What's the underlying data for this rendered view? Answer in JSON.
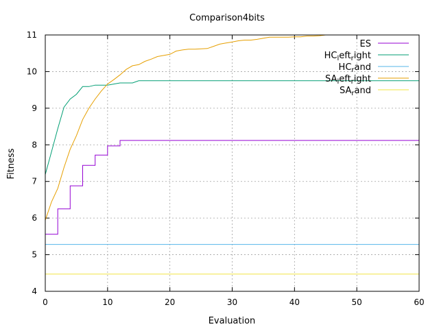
{
  "chart_data": {
    "type": "line",
    "title": "Comparison4bits",
    "xlabel": "Evaluation",
    "ylabel": "Fitness",
    "xlim": [
      0,
      60
    ],
    "ylim": [
      4,
      11
    ],
    "x_ticks": [
      0,
      10,
      20,
      30,
      40,
      50,
      60
    ],
    "y_ticks": [
      4,
      5,
      6,
      7,
      8,
      9,
      10,
      11
    ],
    "grid": true,
    "legend_position": "top-right",
    "series": [
      {
        "name": "ES",
        "legend_main": "ES",
        "legend_parts": [],
        "color": "#9400d3",
        "step": true,
        "points": [
          [
            0,
            5.56
          ],
          [
            1,
            5.56
          ],
          [
            2,
            6.25
          ],
          [
            3,
            6.25
          ],
          [
            4,
            6.88
          ],
          [
            5,
            6.88
          ],
          [
            6,
            7.44
          ],
          [
            7,
            7.44
          ],
          [
            8,
            7.72
          ],
          [
            9,
            7.72
          ],
          [
            10,
            7.97
          ],
          [
            11,
            7.97
          ],
          [
            12,
            8.12
          ],
          [
            60,
            8.12
          ]
        ]
      },
      {
        "name": "HC_left_right",
        "legend_main": "HC",
        "legend_parts": [
          [
            "_",
            "l"
          ],
          [
            "",
            "eft"
          ],
          [
            "_",
            "r"
          ],
          [
            "",
            "ight"
          ]
        ],
        "color": "#009e73",
        "step": false,
        "points": [
          [
            0,
            7.19
          ],
          [
            1,
            7.81
          ],
          [
            2,
            8.44
          ],
          [
            3,
            9.03
          ],
          [
            4,
            9.25
          ],
          [
            5,
            9.38
          ],
          [
            6,
            9.59
          ],
          [
            7,
            9.59
          ],
          [
            8,
            9.63
          ],
          [
            9,
            9.63
          ],
          [
            10,
            9.63
          ],
          [
            11,
            9.66
          ],
          [
            12,
            9.69
          ],
          [
            13,
            9.69
          ],
          [
            14,
            9.69
          ],
          [
            15,
            9.75
          ],
          [
            60,
            9.75
          ]
        ]
      },
      {
        "name": "HC_rand",
        "legend_main": "HC",
        "legend_parts": [
          [
            "_",
            "r"
          ],
          [
            "",
            "and"
          ]
        ],
        "color": "#56b4e9",
        "step": false,
        "points": [
          [
            0,
            5.28
          ],
          [
            60,
            5.28
          ]
        ]
      },
      {
        "name": "SA_left_right",
        "legend_main": "SA",
        "legend_parts": [
          [
            "_",
            "l"
          ],
          [
            "",
            "eft"
          ],
          [
            "_",
            "r"
          ],
          [
            "",
            "ight"
          ]
        ],
        "color": "#e69f00",
        "step": false,
        "points": [
          [
            0,
            5.94
          ],
          [
            1,
            6.44
          ],
          [
            2,
            6.81
          ],
          [
            3,
            7.38
          ],
          [
            4,
            7.88
          ],
          [
            5,
            8.25
          ],
          [
            6,
            8.69
          ],
          [
            7,
            9.0
          ],
          [
            8,
            9.25
          ],
          [
            9,
            9.47
          ],
          [
            10,
            9.66
          ],
          [
            11,
            9.78
          ],
          [
            12,
            9.91
          ],
          [
            13,
            10.06
          ],
          [
            14,
            10.16
          ],
          [
            15,
            10.19
          ],
          [
            16,
            10.28
          ],
          [
            17,
            10.34
          ],
          [
            18,
            10.41
          ],
          [
            19,
            10.44
          ],
          [
            20,
            10.47
          ],
          [
            21,
            10.56
          ],
          [
            22,
            10.59
          ],
          [
            23,
            10.61
          ],
          [
            24,
            10.61
          ],
          [
            25,
            10.62
          ],
          [
            26,
            10.63
          ],
          [
            27,
            10.69
          ],
          [
            28,
            10.75
          ],
          [
            29,
            10.78
          ],
          [
            30,
            10.81
          ],
          [
            31,
            10.84
          ],
          [
            32,
            10.86
          ],
          [
            33,
            10.86
          ],
          [
            34,
            10.88
          ],
          [
            35,
            10.91
          ],
          [
            36,
            10.94
          ],
          [
            37,
            10.94
          ],
          [
            38,
            10.94
          ],
          [
            39,
            10.94
          ],
          [
            40,
            10.95
          ],
          [
            41,
            10.95
          ],
          [
            42,
            10.97
          ],
          [
            43,
            10.97
          ],
          [
            44,
            10.98
          ],
          [
            45,
            11.0
          ]
        ]
      },
      {
        "name": "SA_rand",
        "legend_main": "SA",
        "legend_parts": [
          [
            "_",
            "r"
          ],
          [
            "",
            "and"
          ]
        ],
        "color": "#f0e442",
        "step": false,
        "points": [
          [
            0,
            4.47
          ],
          [
            60,
            4.47
          ]
        ]
      }
    ]
  }
}
